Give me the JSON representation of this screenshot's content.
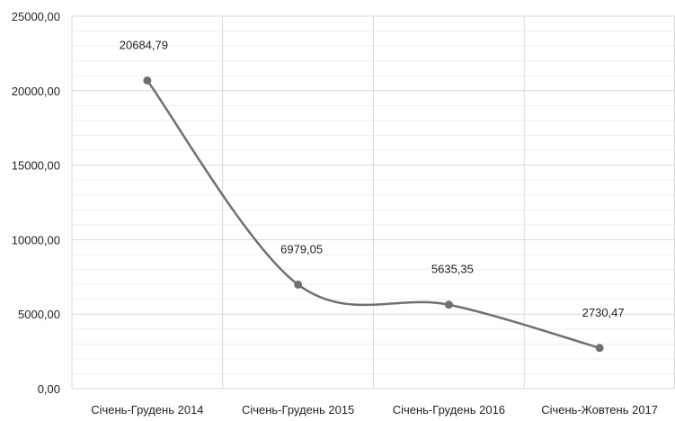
{
  "chart_data": {
    "type": "line",
    "categories": [
      "Січень-Грудень 2014",
      "Січень-Грудень 2015",
      "Січень-Грудень 2016",
      "Січень-Жовтень 2017"
    ],
    "values": [
      20684.79,
      6979.05,
      5635.35,
      2730.47
    ],
    "data_labels": [
      "20684,79",
      "6979,05",
      "5635,35",
      "2730,47"
    ],
    "y_tick_values": [
      0,
      5000,
      10000,
      15000,
      20000,
      25000
    ],
    "y_tick_labels": [
      "0,00",
      "5000,00",
      "10000,00",
      "15000,00",
      "20000,00",
      "25000,00"
    ],
    "ylim": [
      0,
      25000
    ],
    "grid": true,
    "smooth": true,
    "legend": "none",
    "colors": {
      "line": "#707070",
      "marker": "#707070",
      "grid_major": "#d9d9d9",
      "grid_minor": "#efefef",
      "text": "#222222"
    }
  }
}
